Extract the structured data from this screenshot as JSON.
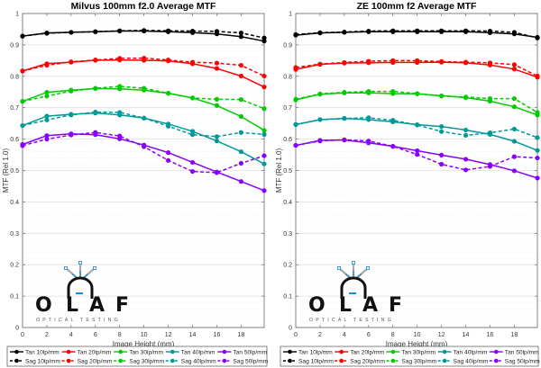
{
  "chart_data": [
    {
      "type": "line",
      "title": "Milvus 100mm f2.0 Average MTF",
      "xlabel": "Image Height (mm)",
      "ylabel": "MTF (Rel 1.0)",
      "xlim": [
        0,
        20
      ],
      "ylim": [
        0,
        1
      ],
      "xticks": [
        "0",
        "2",
        "4",
        "6",
        "8",
        "10",
        "12",
        "14",
        "16",
        "18"
      ],
      "yticks": [
        "0",
        "0.1",
        "0.2",
        "0.3",
        "0.4",
        "0.5",
        "0.6",
        "0.7",
        "0.8",
        "0.9",
        "1"
      ],
      "grid": true,
      "legend_position": "bottom",
      "x": [
        0,
        2,
        4,
        6,
        8,
        10,
        12,
        14,
        16,
        18,
        20
      ],
      "series": [
        {
          "name": "Tan 10lp/mm",
          "color": "#000000",
          "style": "solid",
          "values": [
            0.928,
            0.938,
            0.94,
            0.942,
            0.944,
            0.944,
            0.942,
            0.939,
            0.935,
            0.926,
            0.912
          ]
        },
        {
          "name": "Sag 10lp/mm",
          "color": "#000000",
          "style": "dashed",
          "values": [
            0.928,
            0.937,
            0.94,
            0.942,
            0.945,
            0.946,
            0.945,
            0.944,
            0.943,
            0.938,
            0.922
          ]
        },
        {
          "name": "Tan 20lp/mm",
          "color": "#ff0000",
          "style": "solid",
          "values": [
            0.817,
            0.84,
            0.845,
            0.851,
            0.852,
            0.851,
            0.849,
            0.84,
            0.825,
            0.801,
            0.766
          ]
        },
        {
          "name": "Sag 20lp/mm",
          "color": "#ff0000",
          "style": "dashed",
          "values": [
            0.817,
            0.835,
            0.846,
            0.852,
            0.857,
            0.858,
            0.852,
            0.845,
            0.842,
            0.835,
            0.801
          ]
        },
        {
          "name": "Tan 30lp/mm",
          "color": "#00cc00",
          "style": "solid",
          "values": [
            0.72,
            0.749,
            0.756,
            0.761,
            0.76,
            0.756,
            0.746,
            0.731,
            0.707,
            0.672,
            0.628
          ]
        },
        {
          "name": "Sag 30lp/mm",
          "color": "#00cc00",
          "style": "dashed",
          "values": [
            0.72,
            0.737,
            0.753,
            0.762,
            0.768,
            0.762,
            0.746,
            0.731,
            0.727,
            0.726,
            0.697
          ]
        },
        {
          "name": "Tan 40lp/mm",
          "color": "#009999",
          "style": "solid",
          "values": [
            0.643,
            0.673,
            0.679,
            0.683,
            0.677,
            0.667,
            0.648,
            0.625,
            0.594,
            0.56,
            0.521
          ]
        },
        {
          "name": "Sag 40lp/mm",
          "color": "#009999",
          "style": "dashed",
          "values": [
            0.643,
            0.661,
            0.677,
            0.686,
            0.685,
            0.667,
            0.641,
            0.614,
            0.608,
            0.621,
            0.615
          ]
        },
        {
          "name": "Tan 50lp/mm",
          "color": "#8800ff",
          "style": "solid",
          "values": [
            0.583,
            0.611,
            0.617,
            0.614,
            0.601,
            0.581,
            0.557,
            0.526,
            0.495,
            0.465,
            0.436
          ]
        },
        {
          "name": "Sag 50lp/mm",
          "color": "#8800ff",
          "style": "dashed",
          "values": [
            0.579,
            0.6,
            0.613,
            0.621,
            0.61,
            0.576,
            0.532,
            0.497,
            0.493,
            0.523,
            0.547
          ]
        }
      ]
    },
    {
      "type": "line",
      "title": "ZE 100mm f2 Average MTF",
      "xlabel": "Image Height (mm)",
      "ylabel": "MTF (Rel 1.0)",
      "xlim": [
        0,
        20
      ],
      "ylim": [
        0,
        1
      ],
      "xticks": [
        "0",
        "2",
        "4",
        "6",
        "8",
        "10",
        "12",
        "14",
        "16",
        "18"
      ],
      "yticks": [
        "0",
        "0.1",
        "0.2",
        "0.3",
        "0.4",
        "0.5",
        "0.6",
        "0.7",
        "0.8",
        "0.9",
        "1"
      ],
      "grid": true,
      "legend_position": "bottom",
      "x": [
        0,
        2,
        4,
        6,
        8,
        10,
        12,
        14,
        16,
        18,
        20
      ],
      "series": [
        {
          "name": "Tan 10lp/mm",
          "color": "#000000",
          "style": "solid",
          "values": [
            0.931,
            0.938,
            0.94,
            0.942,
            0.942,
            0.942,
            0.942,
            0.942,
            0.939,
            0.935,
            0.924
          ]
        },
        {
          "name": "Sag 10lp/mm",
          "color": "#000000",
          "style": "dashed",
          "values": [
            0.933,
            0.939,
            0.941,
            0.944,
            0.945,
            0.945,
            0.945,
            0.945,
            0.944,
            0.94,
            0.922
          ]
        },
        {
          "name": "Tan 20lp/mm",
          "color": "#ff0000",
          "style": "solid",
          "values": [
            0.822,
            0.838,
            0.842,
            0.843,
            0.844,
            0.844,
            0.845,
            0.843,
            0.836,
            0.823,
            0.797
          ]
        },
        {
          "name": "Sag 20lp/mm",
          "color": "#ff0000",
          "style": "dashed",
          "values": [
            0.828,
            0.839,
            0.844,
            0.848,
            0.85,
            0.85,
            0.847,
            0.845,
            0.843,
            0.837,
            0.801
          ]
        },
        {
          "name": "Tan 30lp/mm",
          "color": "#00cc00",
          "style": "solid",
          "values": [
            0.725,
            0.743,
            0.747,
            0.747,
            0.745,
            0.744,
            0.738,
            0.732,
            0.721,
            0.703,
            0.677
          ]
        },
        {
          "name": "Sag 30lp/mm",
          "color": "#00cc00",
          "style": "dashed",
          "values": [
            0.727,
            0.744,
            0.749,
            0.752,
            0.752,
            0.745,
            0.737,
            0.734,
            0.729,
            0.729,
            0.685
          ]
        },
        {
          "name": "Tan 40lp/mm",
          "color": "#009999",
          "style": "solid",
          "values": [
            0.646,
            0.662,
            0.666,
            0.662,
            0.655,
            0.646,
            0.64,
            0.629,
            0.615,
            0.593,
            0.564
          ]
        },
        {
          "name": "Sag 40lp/mm",
          "color": "#009999",
          "style": "dashed",
          "values": [
            0.647,
            0.662,
            0.666,
            0.668,
            0.66,
            0.645,
            0.624,
            0.612,
            0.62,
            0.632,
            0.605
          ]
        },
        {
          "name": "Tan 50lp/mm",
          "color": "#8800ff",
          "style": "solid",
          "values": [
            0.58,
            0.596,
            0.597,
            0.588,
            0.577,
            0.563,
            0.549,
            0.536,
            0.519,
            0.499,
            0.476
          ]
        },
        {
          "name": "Sag 50lp/mm",
          "color": "#8800ff",
          "style": "dashed",
          "values": [
            0.58,
            0.594,
            0.598,
            0.594,
            0.577,
            0.551,
            0.52,
            0.502,
            0.513,
            0.544,
            0.54
          ]
        }
      ]
    }
  ],
  "logo": {
    "letters": [
      "O",
      "L",
      "A",
      "F"
    ],
    "subtitle": "OPTICAL TESTING",
    "accent_color": "#1e88d0"
  }
}
